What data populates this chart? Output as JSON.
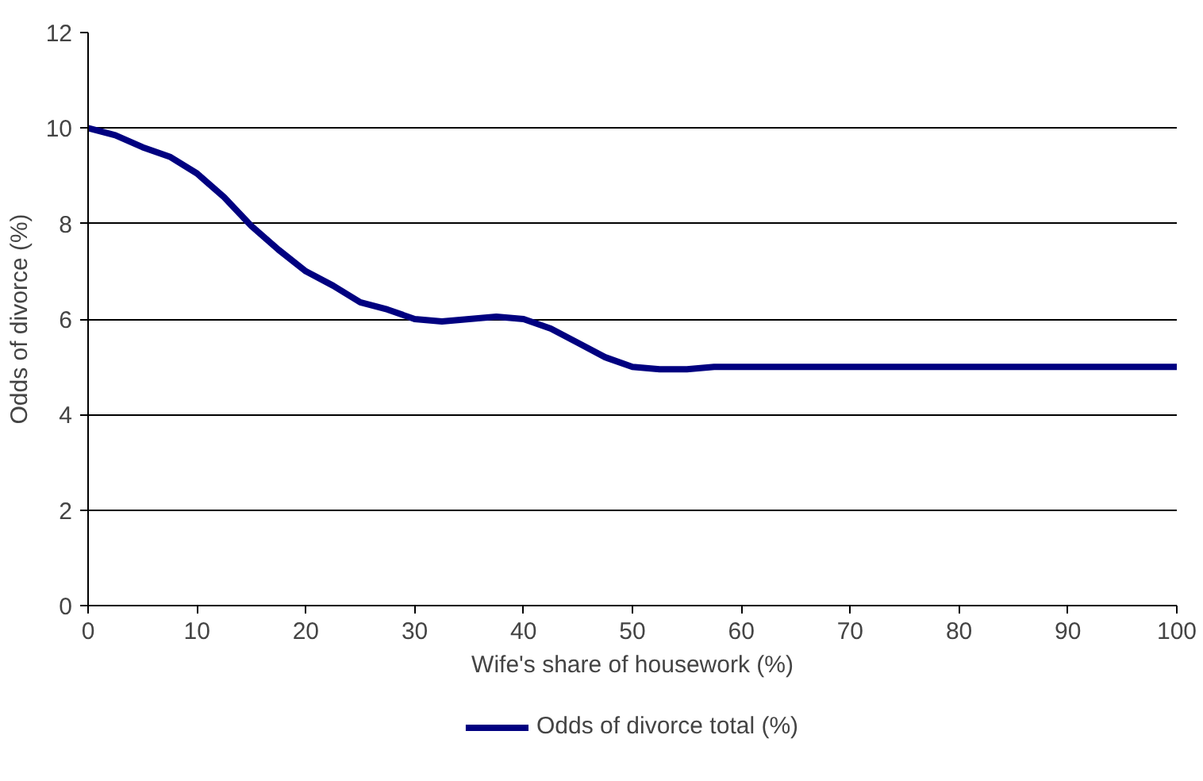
{
  "chart_data": {
    "type": "line",
    "xlabel": "Wife's share of housework (%)",
    "ylabel": "Odds of divorce (%)",
    "x": [
      0,
      2.5,
      5,
      7.5,
      10,
      12.5,
      15,
      17.5,
      20,
      22.5,
      25,
      27.5,
      30,
      32.5,
      35,
      37.5,
      40,
      42.5,
      45,
      47.5,
      50,
      52.5,
      55,
      57.5,
      60,
      70,
      80,
      90,
      100
    ],
    "series": [
      {
        "name": "Odds of divorce total (%)",
        "color": "#000080",
        "values": [
          10,
          9.85,
          9.6,
          9.4,
          9.05,
          8.55,
          7.95,
          7.45,
          7.0,
          6.7,
          6.35,
          6.2,
          6.0,
          5.95,
          6.0,
          6.05,
          6.0,
          5.8,
          5.5,
          5.2,
          5.0,
          4.95,
          4.95,
          5.0,
          5.0,
          5.0,
          5.0,
          5.0,
          5.0
        ]
      }
    ],
    "xlim": [
      0,
      100
    ],
    "xticks": [
      0,
      10,
      20,
      30,
      40,
      50,
      60,
      70,
      80,
      90,
      100
    ],
    "ylim": [
      0,
      12
    ],
    "yticks": [
      0,
      2,
      4,
      6,
      8,
      10,
      12
    ],
    "grid": "y",
    "legend": "bottom",
    "marker": "none",
    "line_style": "solid"
  }
}
